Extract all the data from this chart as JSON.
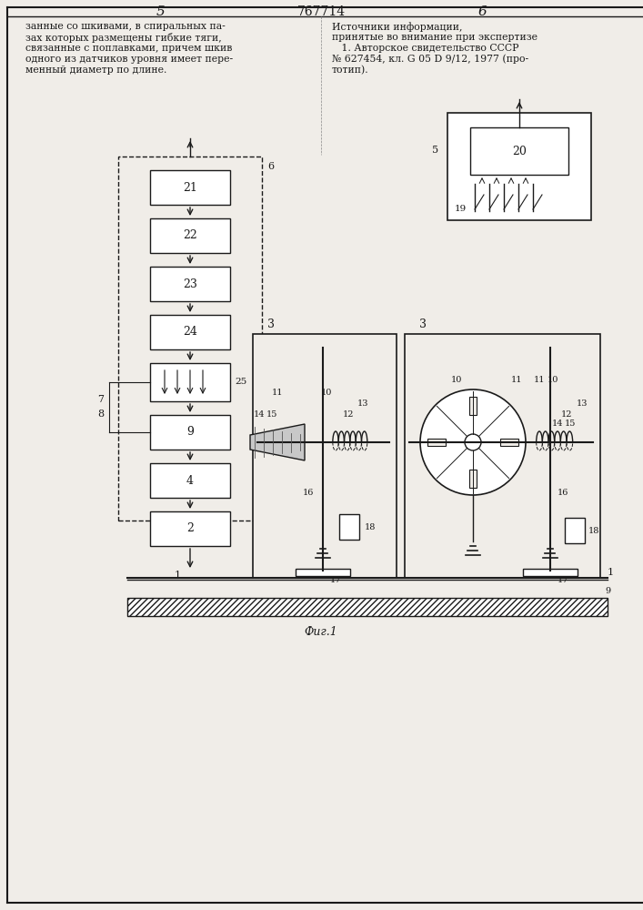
{
  "bg_color": "#f0ede8",
  "page_color": "#f0ede8",
  "line_color": "#1a1a1a",
  "header_left_num": "5",
  "header_center_num": "767714",
  "header_right_num": "6",
  "text_left": "занные со шкивами, в спиральных па-\nзах которых размещены гибкие тяги,\nсвязанные с поплавками, причем шкив\nодного из датчиков уровня имеет пере-\nменный диаметр по длине.",
  "text_right": "Источники информации,\nпринятые во внимание при экспертизе\n   1. Авторское свидетельство СССР\n№ 627454, кл. G 05 D 9/12, 1977 (про-\nтотип).",
  "fig_caption": "Фиг.1",
  "blocks_left": [
    "21",
    "22",
    "23",
    "24"
  ],
  "block_9": "9",
  "block_4": "4",
  "block_2": "2",
  "block_25_label": "25",
  "block_6_label": "6",
  "block_5_label": "5",
  "block_19_label": "19",
  "block_20_label": "20",
  "label_7": "7",
  "label_8": "8",
  "label_1": "1",
  "label_9": "9"
}
